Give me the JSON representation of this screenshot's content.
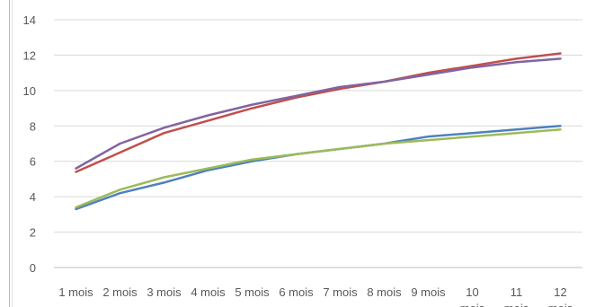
{
  "chart_data": {
    "type": "line",
    "title": "",
    "xlabel": "",
    "ylabel": "",
    "ylim": [
      0,
      14
    ],
    "y_ticks": [
      "0",
      "2",
      "4",
      "6",
      "8",
      "10",
      "12",
      "14"
    ],
    "grid": true,
    "legend": "none",
    "categories": [
      [
        "1 mois"
      ],
      [
        "2 mois"
      ],
      [
        "3 mois"
      ],
      [
        "4 mois"
      ],
      [
        "5 mois"
      ],
      [
        "6 mois"
      ],
      [
        "7 mois"
      ],
      [
        "8 mois"
      ],
      [
        "9 mois"
      ],
      [
        "10",
        "mois"
      ],
      [
        "11",
        "mois"
      ],
      [
        "12",
        "mois"
      ]
    ],
    "series": [
      {
        "color": "#c0504d",
        "values": [
          5.4,
          6.5,
          7.6,
          8.3,
          9.0,
          9.6,
          10.1,
          10.5,
          11.0,
          11.4,
          11.8,
          12.1
        ]
      },
      {
        "color": "#8064a2",
        "values": [
          5.6,
          7.0,
          7.9,
          8.6,
          9.2,
          9.7,
          10.2,
          10.5,
          10.9,
          11.3,
          11.6,
          11.8
        ]
      },
      {
        "color": "#4f81bd",
        "values": [
          3.3,
          4.2,
          4.8,
          5.5,
          6.0,
          6.4,
          6.7,
          7.0,
          7.4,
          7.6,
          7.8,
          8.0
        ]
      },
      {
        "color": "#9bbb59",
        "values": [
          3.4,
          4.4,
          5.1,
          5.6,
          6.1,
          6.4,
          6.7,
          7.0,
          7.2,
          7.4,
          7.6,
          7.8
        ]
      }
    ]
  }
}
